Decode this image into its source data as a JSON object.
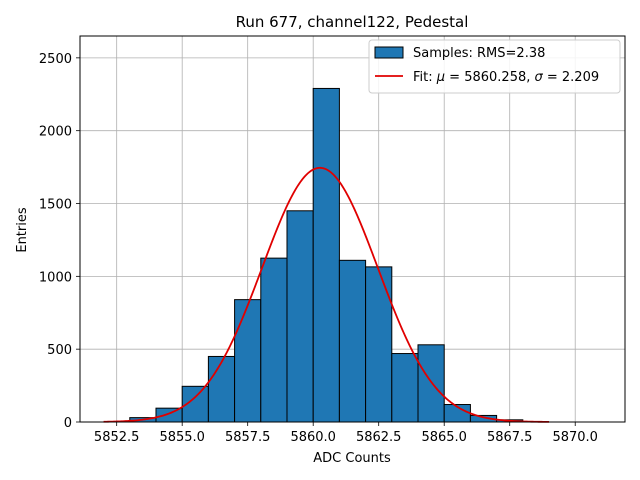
{
  "chart_data": {
    "type": "bar",
    "title": "Run 677, channel122, Pedestal",
    "xlabel": "ADC Counts",
    "ylabel": "Entries",
    "xlim": [
      5851.1,
      5871.9
    ],
    "ylim": [
      0,
      2650
    ],
    "xticks": [
      5852.5,
      5855.0,
      5857.5,
      5860.0,
      5862.5,
      5865.0,
      5867.5,
      5870.0
    ],
    "xtick_labels": [
      "5852.5",
      "5855.0",
      "5857.5",
      "5860.0",
      "5862.5",
      "5865.0",
      "5867.5",
      "5870.0"
    ],
    "yticks": [
      0,
      500,
      1000,
      1500,
      2000,
      2500
    ],
    "ytick_labels": [
      "0",
      "500",
      "1000",
      "1500",
      "2000",
      "2500"
    ],
    "grid": true,
    "legend_position": "top-right",
    "bar_color": "#1f77b4",
    "fit_color": "#e00000",
    "histogram": {
      "name": "Samples: RMS=2.38",
      "bin_edges": [
        5852,
        5853,
        5854,
        5855,
        5856,
        5857,
        5858,
        5859,
        5860,
        5861,
        5862,
        5863,
        5864,
        5865,
        5866,
        5867,
        5868,
        5869,
        5870,
        5871
      ],
      "counts": [
        0,
        30,
        95,
        245,
        450,
        840,
        1125,
        1450,
        2290,
        1110,
        1065,
        470,
        530,
        120,
        45,
        15,
        0,
        0,
        0
      ]
    },
    "fit": {
      "name": "Fit: μ = 5860.258, σ = 2.209",
      "label_prefix": "Fit: ",
      "mu_symbol": "μ",
      "mu_text": " = 5860.258, ",
      "sigma_symbol": "σ",
      "sigma_text": " = 2.209",
      "mu": 5860.258,
      "sigma": 2.209,
      "amplitude": 1745,
      "x_range": [
        5852,
        5869
      ]
    }
  }
}
